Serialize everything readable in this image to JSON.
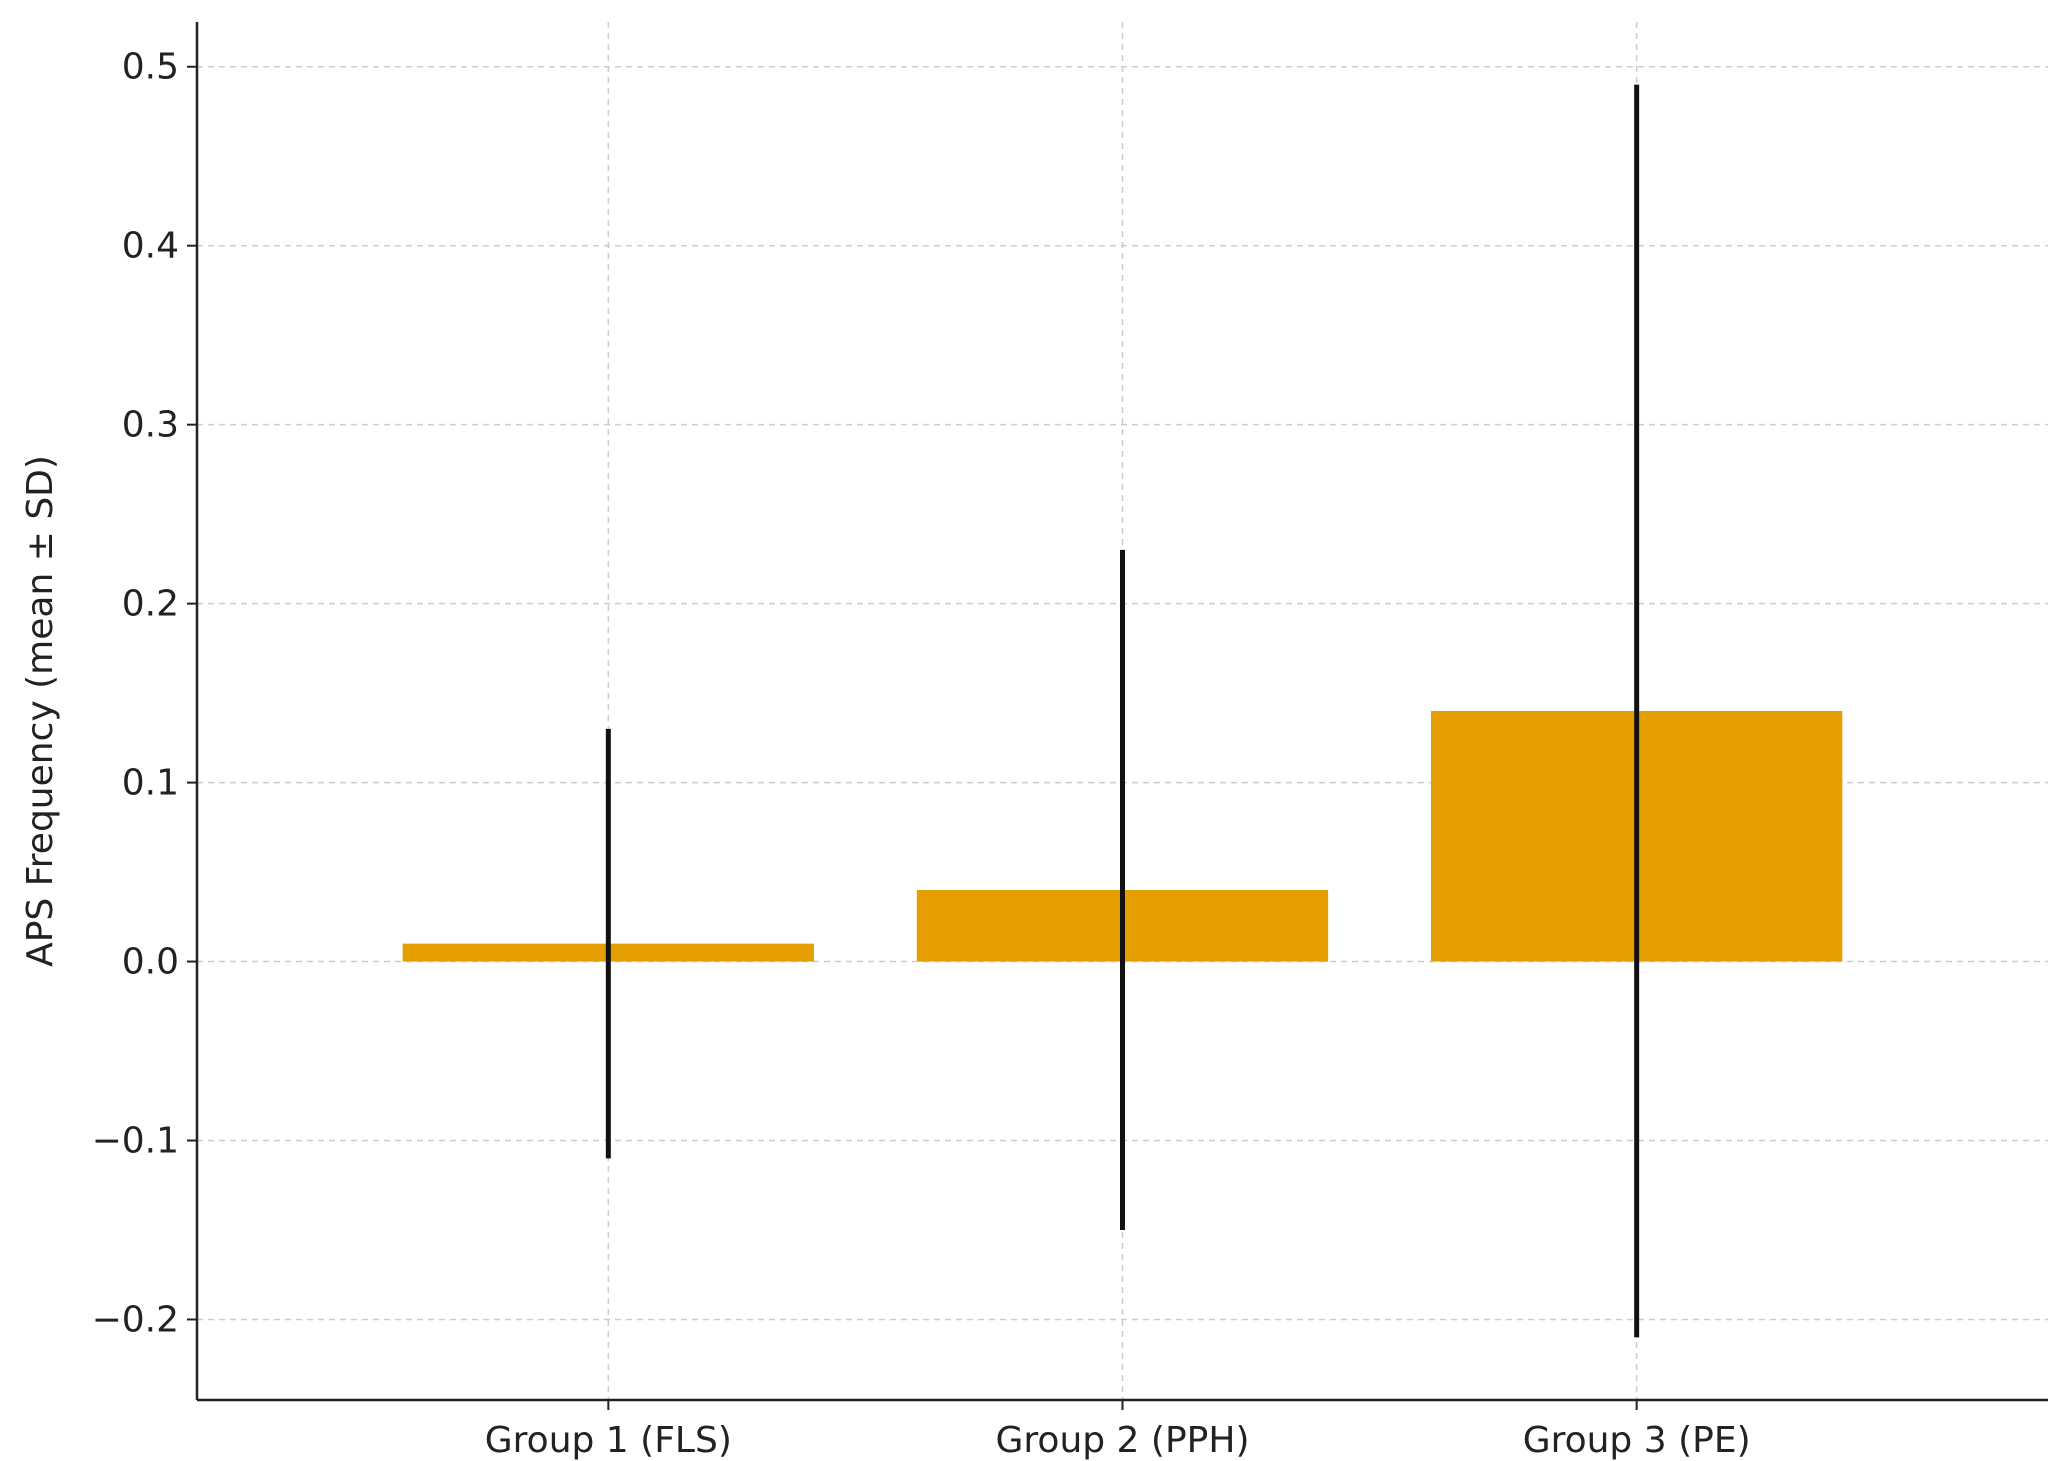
{
  "chart_data": {
    "type": "bar",
    "title": "",
    "xlabel": "",
    "ylabel": "APS Frequency (mean ± SD)",
    "categories": [
      "Group 1 (FLS)",
      "Group 2 (PPH)",
      "Group 3 (PE)"
    ],
    "values": [
      0.01,
      0.04,
      0.14
    ],
    "error": [
      0.12,
      0.19,
      0.35
    ],
    "ylim": [
      -0.245,
      0.525
    ],
    "yticks": [
      -0.2,
      -0.1,
      0.0,
      0.1,
      0.2,
      0.3,
      0.4,
      0.5
    ],
    "ytick_labels": [
      "−0.2",
      "−0.1",
      "0.0",
      "0.1",
      "0.2",
      "0.3",
      "0.4",
      "0.5"
    ],
    "grid": true,
    "bar_color": "#e69f00",
    "error_color": "#111111",
    "grid_color": "#cccccc"
  }
}
